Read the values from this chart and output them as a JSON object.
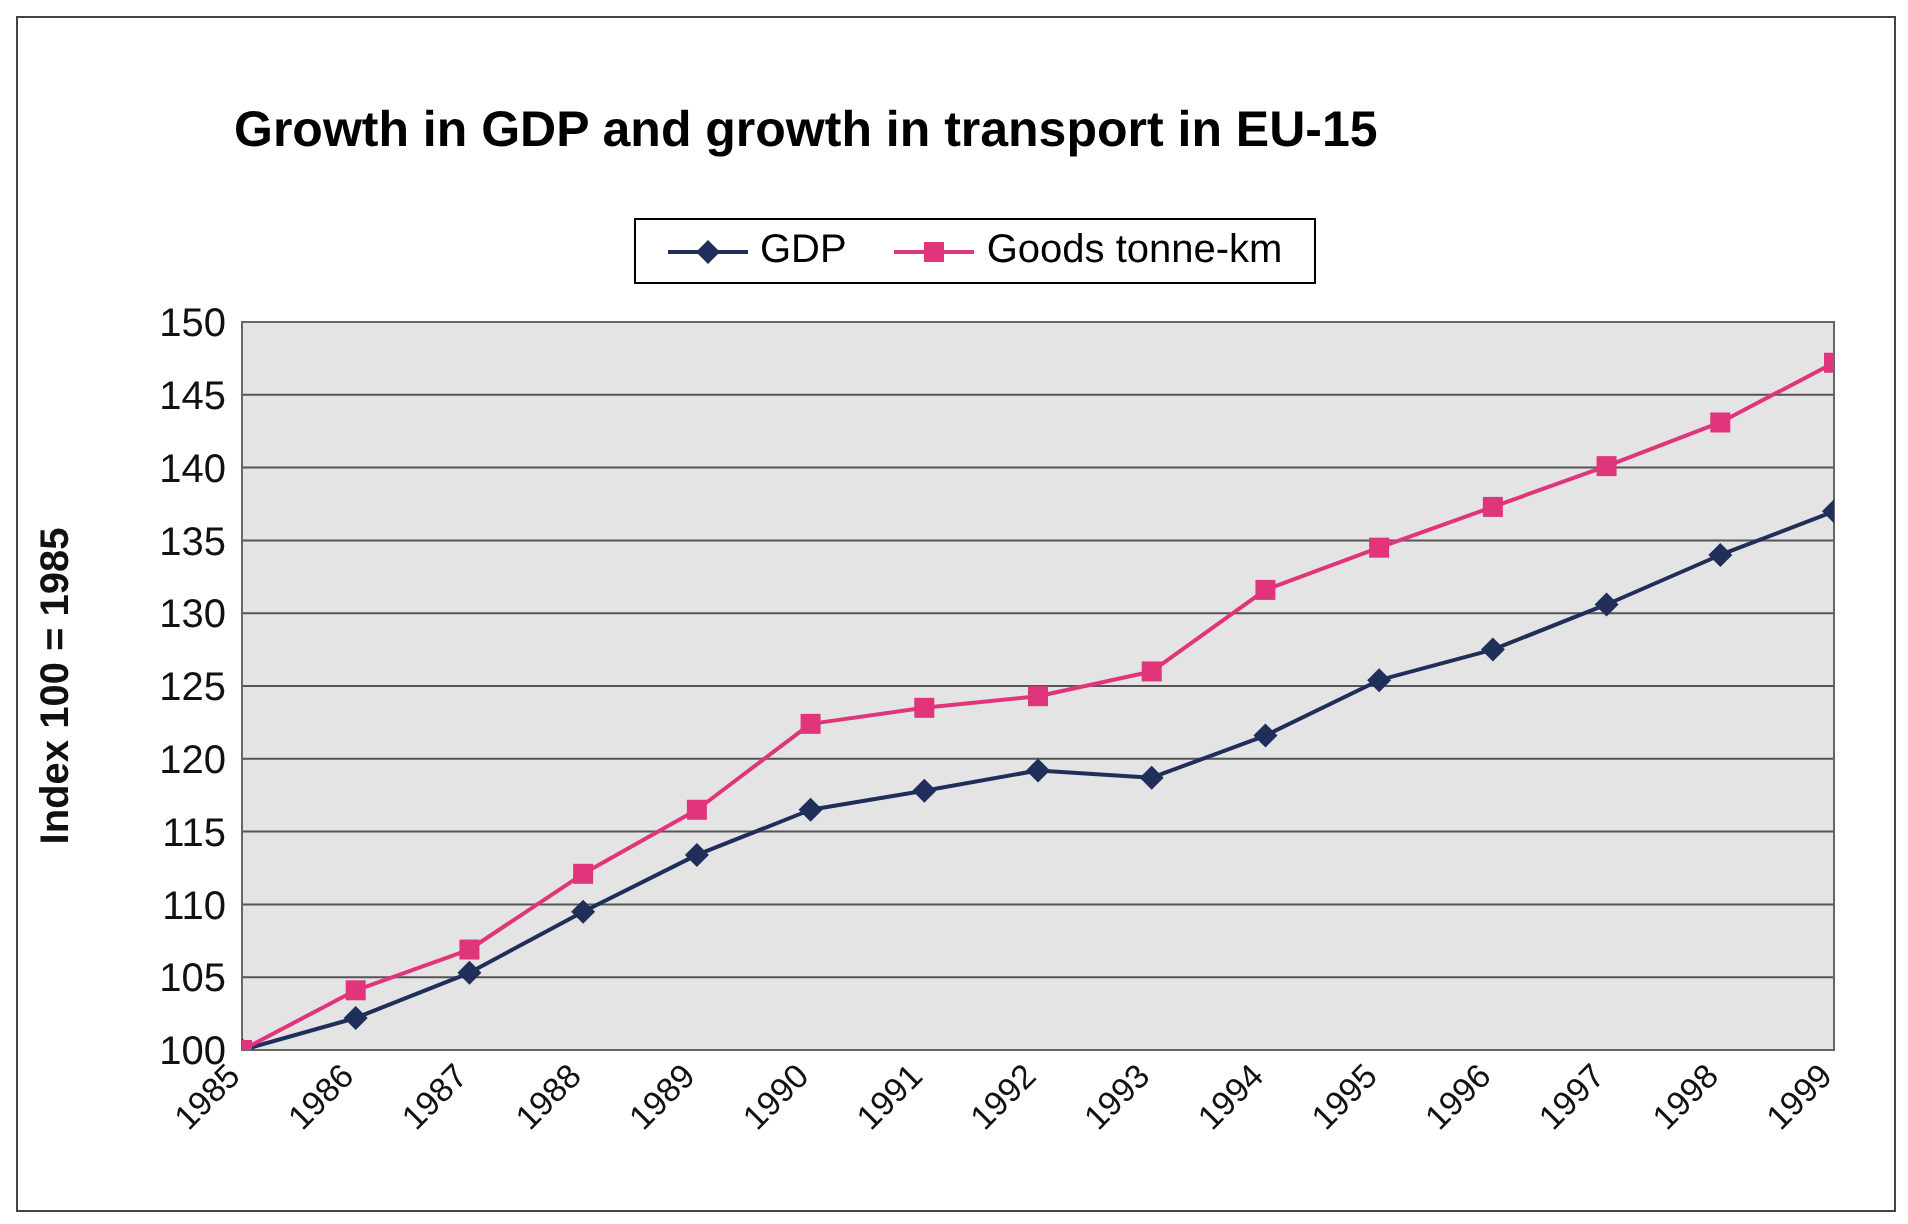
{
  "chart_data": {
    "type": "line",
    "title": "Growth in GDP and growth in transport in EU-15",
    "ylabel": "Index 100 = 1985",
    "categories": [
      "1985",
      "1986",
      "1987",
      "1988",
      "1989",
      "1990",
      "1991",
      "1992",
      "1993",
      "1994",
      "1995",
      "1996",
      "1997",
      "1998",
      "1999"
    ],
    "series": [
      {
        "name": "GDP",
        "color": "#1f2f5a",
        "marker": "diamond",
        "values": [
          100,
          102.2,
          105.3,
          109.5,
          113.4,
          116.5,
          117.8,
          119.2,
          118.7,
          121.6,
          125.4,
          127.5,
          130.6,
          134,
          137
        ]
      },
      {
        "name": "Goods tonne-km",
        "color": "#e0357a",
        "marker": "square",
        "values": [
          100,
          104.1,
          106.9,
          112.1,
          116.5,
          122.4,
          123.5,
          124.3,
          126,
          131.6,
          134.5,
          137.3,
          140.1,
          143.1,
          147.2
        ]
      }
    ],
    "ylim": [
      100,
      150
    ],
    "yticks": [
      100,
      105,
      110,
      115,
      120,
      125,
      130,
      135,
      140,
      145,
      150
    ],
    "grid": "y",
    "legend": "top",
    "line_style": "solid"
  }
}
